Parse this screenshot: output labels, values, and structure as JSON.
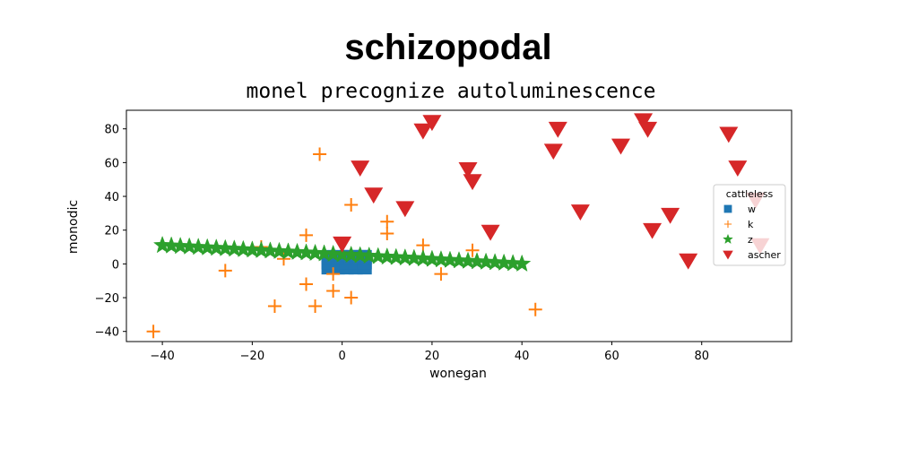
{
  "chart_data": {
    "type": "scatter",
    "title": "schizopodal",
    "subtitle": "monel precognize autoluminescence",
    "xlabel": "wonegan",
    "ylabel": "monodic",
    "xlim": [
      -48,
      100
    ],
    "ylim": [
      -46,
      91
    ],
    "xticks": [
      -40,
      -20,
      0,
      20,
      40,
      60,
      80
    ],
    "yticks": [
      -40,
      -20,
      0,
      20,
      40,
      60,
      80
    ],
    "xtick_labels": [
      "−40",
      "−20",
      "0",
      "20",
      "40",
      "60",
      "80"
    ],
    "ytick_labels": [
      "−40",
      "−20",
      "0",
      "20",
      "40",
      "60",
      "80"
    ],
    "grid": false,
    "legend": {
      "title": "cattleless",
      "placement": "right"
    },
    "series": [
      {
        "name": "w",
        "marker": "square",
        "color": "#1f77b4",
        "points": [
          [
            -3,
            -2
          ],
          [
            -1,
            -2
          ],
          [
            1,
            -2
          ],
          [
            3,
            -2
          ],
          [
            5,
            -2
          ],
          [
            -3,
            1
          ],
          [
            -1,
            1
          ],
          [
            1,
            1
          ],
          [
            3,
            1
          ],
          [
            5,
            1
          ],
          [
            -3,
            4
          ],
          [
            0,
            4
          ],
          [
            2,
            4
          ],
          [
            4,
            4
          ],
          [
            5,
            4
          ]
        ]
      },
      {
        "name": "k",
        "marker": "plus",
        "color": "#ff7f0e",
        "points": [
          [
            -42,
            -40
          ],
          [
            -26,
            -4
          ],
          [
            -18,
            10
          ],
          [
            -15,
            -25
          ],
          [
            -13,
            3
          ],
          [
            -8,
            17
          ],
          [
            -8,
            -12
          ],
          [
            -6,
            -25
          ],
          [
            -5,
            65
          ],
          [
            -2,
            -16
          ],
          [
            -2,
            -6
          ],
          [
            2,
            35
          ],
          [
            2,
            -20
          ],
          [
            10,
            25
          ],
          [
            10,
            18
          ],
          [
            18,
            11
          ],
          [
            22,
            -6
          ],
          [
            29,
            8
          ],
          [
            43,
            -27
          ]
        ]
      },
      {
        "name": "z",
        "marker": "star",
        "color": "#2ca02c",
        "line": {
          "x_start": -40,
          "x_end": 40,
          "step": 2,
          "y_at_start": 11,
          "y_at_end": 0
        }
      },
      {
        "name": "ascher",
        "marker": "triangle-down",
        "color": "#d62728",
        "points": [
          [
            0,
            12
          ],
          [
            4,
            57
          ],
          [
            7,
            41
          ],
          [
            14,
            33
          ],
          [
            18,
            79
          ],
          [
            20,
            84
          ],
          [
            28,
            56
          ],
          [
            29,
            49
          ],
          [
            33,
            19
          ],
          [
            47,
            67
          ],
          [
            48,
            80
          ],
          [
            53,
            31
          ],
          [
            62,
            70
          ],
          [
            67,
            85
          ],
          [
            68,
            80
          ],
          [
            69,
            20
          ],
          [
            73,
            29
          ],
          [
            77,
            2
          ],
          [
            86,
            77
          ],
          [
            88,
            57
          ],
          [
            92,
            38
          ],
          [
            93,
            11
          ]
        ]
      }
    ]
  }
}
